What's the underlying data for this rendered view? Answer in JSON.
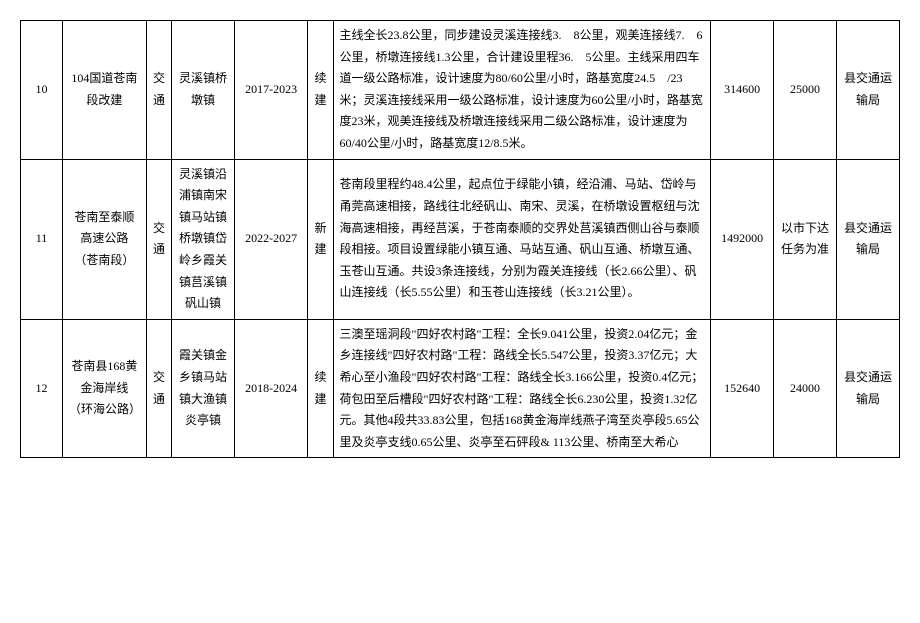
{
  "rows": [
    {
      "num": "10",
      "name": "104国道苍南段改建",
      "category": "交通",
      "location": "灵溪镇桥墩镇",
      "year": "2017-2023",
      "type": "续建",
      "description": "主线全长23.8公里，同步建设灵溪连接线3.　8公里，观美连接线7.　6公里，桥墩连接线1.3公里，合计建设里程36.　5公里。主线采用四车道一级公路标准，设计速度为80/60公里/小时，路基宽度24.5　/23米；灵溪连接线采用一级公路标准，设计速度为60公里/小时，路基宽度23米，观美连接线及桥墩连接线采用二级公路标准，设计速度为60/40公里/小时，路基宽度12/8.5米。",
      "inv1": "314600",
      "inv2": "25000",
      "dept": "县交通运输局"
    },
    {
      "num": "11",
      "name": "苍南至泰顺高速公路（苍南段）",
      "category": "交通",
      "location": "灵溪镇沿浦镇南宋镇马站镇桥墩镇岱岭乡霞关镇莒溪镇矾山镇",
      "year": "2022-2027",
      "type": "新建",
      "description": "苍南段里程约48.4公里，起点位于绿能小镇，经沿浦、马站、岱岭与甬莞高速相接，路线往北经矾山、南宋、灵溪，在桥墩设置枢纽与沈海高速相接，再经莒溪，于苍南泰顺的交界处莒溪镇西侧山谷与泰顺段相接。项目设置绿能小镇互通、马站互通、矾山互通、桥墩互通、玉苍山互通。共设3条连接线，分别为霞关连接线（长2.66公里）、矾山连接线（长5.55公里）和玉苍山连接线（长3.21公里）。",
      "inv1": "1492000",
      "inv2": "以市下达任务为准",
      "dept": "县交通运输局"
    },
    {
      "num": "12",
      "name": "苍南县168黄金海岸线（环海公路）",
      "category": "交通",
      "location": "霞关镇金乡镇马站镇大渔镇炎亭镇",
      "year": "2018-2024",
      "type": "续建",
      "description": "三澳至瑶洞段\"四好农村路\"工程：全长9.041公里，投资2.04亿元；金乡连接线\"四好农村路\"工程：路线全长5.547公里，投资3.37亿元；大希心至小渔段\"四好农村路\"工程：路线全长3.166公里，投资0.4亿元；荷包田至后槽段\"四好农村路\"工程：路线全长6.230公里，投资1.32亿元。其他4段共33.83公里，包括168黄金海岸线燕子湾至炎亭段5.65公里及炎亭支线0.65公里、炎亭至石砰段& 113公里、桥南至大希心",
      "inv1": "152640",
      "inv2": "24000",
      "dept": "县交通运输局"
    }
  ]
}
